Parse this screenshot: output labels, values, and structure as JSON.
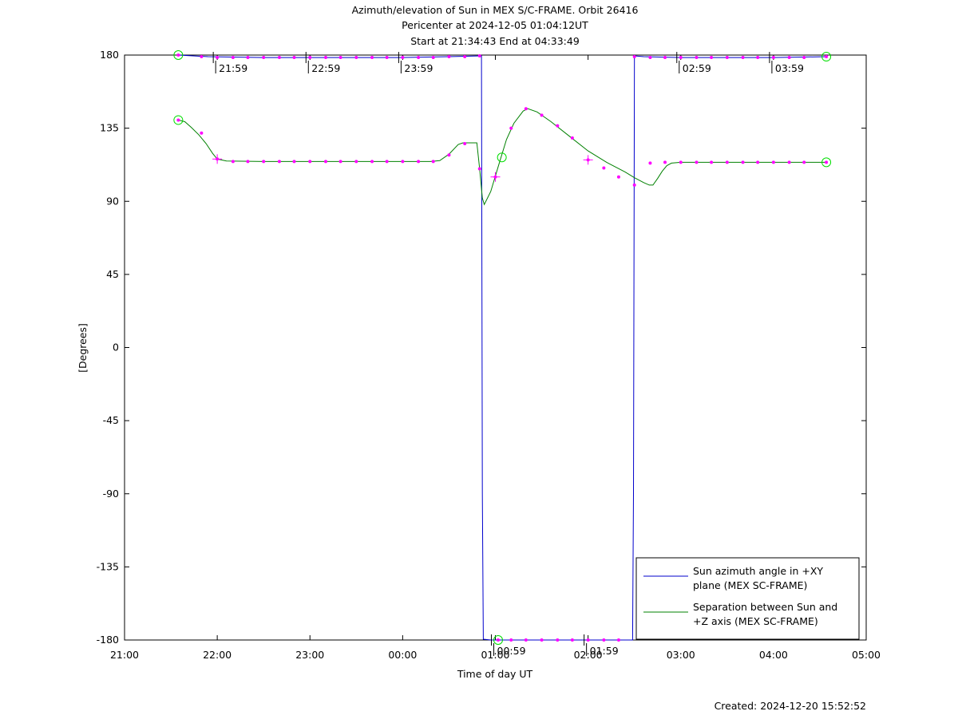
{
  "chart_data": {
    "type": "line",
    "title_lines": [
      "Azimuth/elevation of Sun in MEX S/C-FRAME.  Orbit 26416",
      "Pericenter at 2024-12-05 01:04:12UT",
      "Start at 21:34:43 End at 04:33:49"
    ],
    "xlabel": "Time of day UT",
    "ylabel": "[Degrees]",
    "xlim": [
      0,
      8
    ],
    "ylim": [
      -180,
      180
    ],
    "xticks": [
      {
        "v": 0,
        "label": "21:00"
      },
      {
        "v": 1,
        "label": "22:00"
      },
      {
        "v": 2,
        "label": "23:00"
      },
      {
        "v": 3,
        "label": "00:00"
      },
      {
        "v": 4,
        "label": "01:00"
      },
      {
        "v": 5,
        "label": "02:00"
      },
      {
        "v": 6,
        "label": "03:00"
      },
      {
        "v": 7,
        "label": "04:00"
      },
      {
        "v": 8,
        "label": "05:00"
      }
    ],
    "yticks": [
      {
        "v": 180,
        "label": "180"
      },
      {
        "v": 135,
        "label": "135"
      },
      {
        "v": 90,
        "label": "90"
      },
      {
        "v": 45,
        "label": "45"
      },
      {
        "v": 0,
        "label": "0"
      },
      {
        "v": -45,
        "label": "-45"
      },
      {
        "v": -90,
        "label": "-90"
      },
      {
        "v": -135,
        "label": "-135"
      },
      {
        "v": -180,
        "label": "-180"
      }
    ],
    "hour_markers": [
      {
        "x": 0.983,
        "y": 178.5,
        "label": "21:59"
      },
      {
        "x": 1.983,
        "y": 178.5,
        "label": "22:59"
      },
      {
        "x": 2.983,
        "y": 178.5,
        "label": "23:59"
      },
      {
        "x": 3.983,
        "y": -180,
        "label": "00:59"
      },
      {
        "x": 4.983,
        "y": -180,
        "label": "01:59"
      },
      {
        "x": 5.983,
        "y": 178.5,
        "label": "02:59"
      },
      {
        "x": 6.983,
        "y": 178.5,
        "label": "03:59"
      }
    ],
    "series": [
      {
        "name": "Sun azimuth angle in +XY plane (MEX SC-FRAME)",
        "color": "#0000cc",
        "points": [
          [
            0.58,
            180
          ],
          [
            0.9,
            179
          ],
          [
            1.5,
            178.5
          ],
          [
            2.5,
            178.5
          ],
          [
            3.0,
            178.5
          ],
          [
            3.5,
            179
          ],
          [
            3.85,
            179.5
          ],
          [
            3.86,
            -90
          ],
          [
            3.87,
            -179.5
          ],
          [
            3.95,
            -180
          ],
          [
            5.0,
            -180
          ],
          [
            5.48,
            -180
          ],
          [
            5.49,
            -90
          ],
          [
            5.5,
            179.5
          ],
          [
            5.6,
            179
          ],
          [
            6.0,
            178.5
          ],
          [
            7.0,
            178.5
          ],
          [
            7.57,
            179
          ]
        ],
        "markers": [
          [
            0.58,
            180
          ],
          [
            0.83,
            179
          ],
          [
            1.0,
            178.5
          ],
          [
            1.17,
            178.5
          ],
          [
            1.33,
            178.5
          ],
          [
            1.5,
            178.5
          ],
          [
            1.67,
            178.5
          ],
          [
            1.83,
            178.5
          ],
          [
            2.0,
            178.5
          ],
          [
            2.17,
            178.5
          ],
          [
            2.33,
            178.5
          ],
          [
            2.5,
            178.5
          ],
          [
            2.67,
            178.5
          ],
          [
            2.83,
            178.5
          ],
          [
            3.0,
            178.5
          ],
          [
            3.17,
            178.5
          ],
          [
            3.33,
            178.5
          ],
          [
            3.5,
            179
          ],
          [
            3.67,
            179
          ],
          [
            3.83,
            179.5
          ],
          [
            4.03,
            -180
          ],
          [
            4.17,
            -180
          ],
          [
            4.33,
            -180
          ],
          [
            4.5,
            -180
          ],
          [
            4.67,
            -180
          ],
          [
            4.83,
            -180
          ],
          [
            5.0,
            -180
          ],
          [
            5.17,
            -180
          ],
          [
            5.33,
            -180
          ],
          [
            5.5,
            179
          ],
          [
            5.67,
            178.5
          ],
          [
            5.83,
            178.5
          ],
          [
            6.0,
            178.5
          ],
          [
            6.17,
            178.5
          ],
          [
            6.33,
            178.5
          ],
          [
            6.5,
            178.5
          ],
          [
            6.67,
            178.5
          ],
          [
            6.83,
            178.5
          ],
          [
            7.0,
            178.5
          ],
          [
            7.17,
            178.5
          ],
          [
            7.33,
            178.5
          ],
          [
            7.57,
            179
          ]
        ],
        "circles": [
          [
            0.58,
            180
          ],
          [
            4.03,
            -180
          ],
          [
            7.57,
            179
          ]
        ]
      },
      {
        "name": "Separation between Sun and +Z axis (MEX SC-FRAME)",
        "color": "#008000",
        "points": [
          [
            0.58,
            140
          ],
          [
            0.65,
            139
          ],
          [
            0.72,
            135.5
          ],
          [
            0.8,
            131
          ],
          [
            0.88,
            125.5
          ],
          [
            0.95,
            119.5
          ],
          [
            1.0,
            116
          ],
          [
            1.1,
            114.8
          ],
          [
            1.5,
            114.5
          ],
          [
            2.0,
            114.5
          ],
          [
            2.5,
            114.5
          ],
          [
            3.0,
            114.5
          ],
          [
            3.3,
            114.5
          ],
          [
            3.4,
            115
          ],
          [
            3.5,
            119
          ],
          [
            3.6,
            125
          ],
          [
            3.65,
            126
          ],
          [
            3.8,
            126
          ],
          [
            3.83,
            110
          ],
          [
            3.86,
            92
          ],
          [
            3.88,
            88
          ],
          [
            3.95,
            96
          ],
          [
            4.05,
            115
          ],
          [
            4.12,
            128
          ],
          [
            4.2,
            138
          ],
          [
            4.3,
            145.5
          ],
          [
            4.35,
            147
          ],
          [
            4.45,
            145
          ],
          [
            4.6,
            139
          ],
          [
            4.8,
            130
          ],
          [
            5.0,
            121
          ],
          [
            5.2,
            114
          ],
          [
            5.4,
            108
          ],
          [
            5.5,
            104.5
          ],
          [
            5.6,
            101.5
          ],
          [
            5.66,
            100
          ],
          [
            5.7,
            100
          ],
          [
            5.75,
            104
          ],
          [
            5.8,
            108.5
          ],
          [
            5.85,
            112
          ],
          [
            5.9,
            113.5
          ],
          [
            6.0,
            114
          ],
          [
            6.5,
            114
          ],
          [
            7.0,
            114
          ],
          [
            7.57,
            114
          ]
        ],
        "markers": [
          [
            0.58,
            140
          ],
          [
            0.83,
            132
          ],
          [
            1.0,
            116
          ],
          [
            1.17,
            114.5
          ],
          [
            1.33,
            114.5
          ],
          [
            1.5,
            114.5
          ],
          [
            1.67,
            114.5
          ],
          [
            1.83,
            114.5
          ],
          [
            2.0,
            114.5
          ],
          [
            2.17,
            114.5
          ],
          [
            2.33,
            114.5
          ],
          [
            2.5,
            114.5
          ],
          [
            2.67,
            114.5
          ],
          [
            2.83,
            114.5
          ],
          [
            3.0,
            114.5
          ],
          [
            3.17,
            114.5
          ],
          [
            3.33,
            114.5
          ],
          [
            3.5,
            118.5
          ],
          [
            3.67,
            125.5
          ],
          [
            3.83,
            110
          ],
          [
            4.0,
            105
          ],
          [
            4.17,
            135
          ],
          [
            4.33,
            147
          ],
          [
            4.5,
            143
          ],
          [
            4.67,
            136.5
          ],
          [
            4.83,
            129
          ],
          [
            5.0,
            115.5
          ],
          [
            5.17,
            110.5
          ],
          [
            5.33,
            105
          ],
          [
            5.5,
            100
          ],
          [
            5.67,
            113.5
          ],
          [
            5.83,
            114
          ],
          [
            6.0,
            114
          ],
          [
            6.17,
            114
          ],
          [
            6.33,
            114
          ],
          [
            6.5,
            114
          ],
          [
            6.67,
            114
          ],
          [
            6.83,
            114
          ],
          [
            7.0,
            114
          ],
          [
            7.17,
            114
          ],
          [
            7.33,
            114
          ],
          [
            7.57,
            114
          ]
        ],
        "circles": [
          [
            0.58,
            140
          ],
          [
            4.07,
            117
          ],
          [
            7.57,
            114
          ]
        ],
        "plus": [
          [
            1.0,
            116
          ],
          [
            4.0,
            105
          ],
          [
            5.0,
            115.5
          ]
        ]
      }
    ],
    "legend": {
      "position": "bottom-right",
      "entries": [
        {
          "lines": [
            "Sun azimuth angle in +XY",
            "plane (MEX SC-FRAME)"
          ],
          "color": "#0000cc"
        },
        {
          "lines": [
            "Separation between Sun and",
            "+Z axis (MEX SC-FRAME)"
          ],
          "color": "#008000"
        }
      ]
    },
    "marker_color": "#ff00ff",
    "circle_color": "#00dd00",
    "created": "Created: 2024-12-20 15:52:52",
    "grid": false
  }
}
